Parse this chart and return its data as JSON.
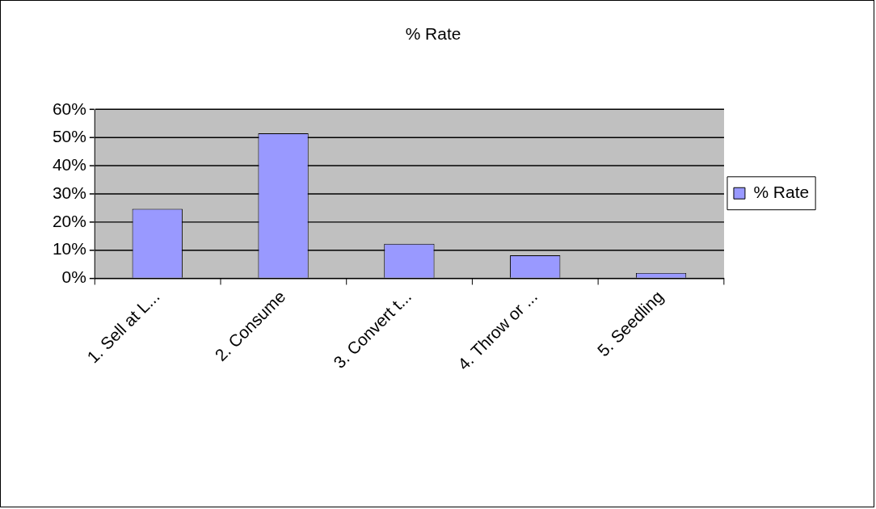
{
  "chart_data": {
    "type": "bar",
    "title": "% Rate",
    "categories": [
      "1. Sell at L...",
      "2. Consume",
      "3. Convert t...",
      "4. Throw or ...",
      "5. Seedling"
    ],
    "series": [
      {
        "name": "% Rate",
        "color": "#9999ff",
        "values": [
          24.7,
          51.6,
          12.3,
          8.2,
          1.9
        ]
      }
    ],
    "ylim": [
      0,
      60
    ],
    "yticks": [
      {
        "value": 0,
        "label": "0%"
      },
      {
        "value": 10,
        "label": "10%"
      },
      {
        "value": 20,
        "label": "20%"
      },
      {
        "value": 30,
        "label": "30%"
      },
      {
        "value": 40,
        "label": "40%"
      },
      {
        "value": 50,
        "label": "50%"
      },
      {
        "value": 60,
        "label": "60%"
      }
    ],
    "grid": "y",
    "legend": "right"
  }
}
